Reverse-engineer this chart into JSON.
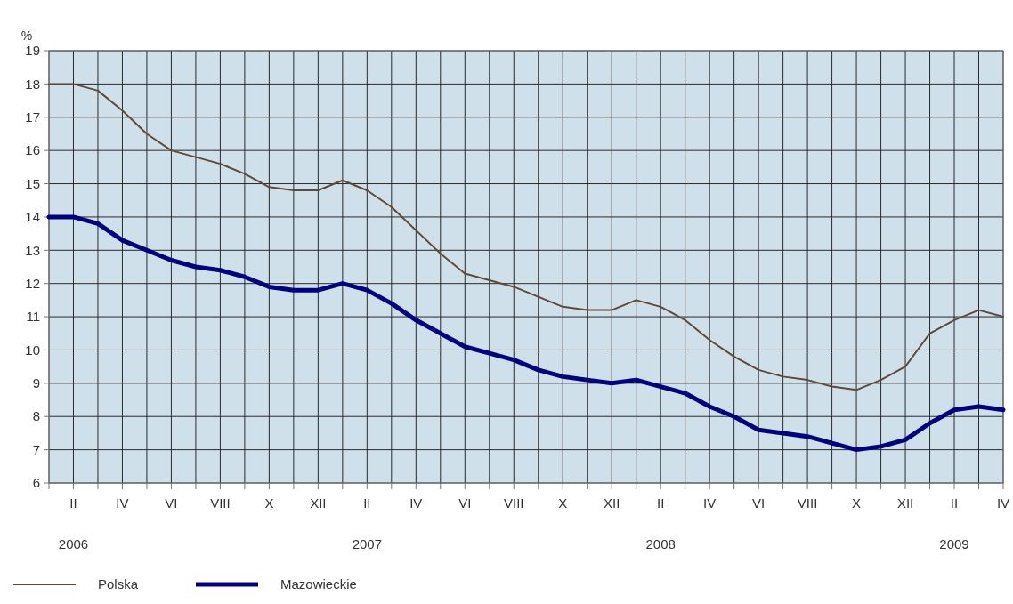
{
  "chart_data": {
    "type": "line",
    "ylabel": "%",
    "categories": [
      null,
      "II",
      null,
      "IV",
      null,
      "VI",
      null,
      "VIII",
      null,
      "X",
      null,
      "XII",
      null,
      "II",
      null,
      "IV",
      null,
      "VI",
      null,
      "VIII",
      null,
      "X",
      null,
      "XII",
      null,
      "II",
      null,
      "IV",
      null,
      "VI",
      null,
      "VIII",
      null,
      "X",
      null,
      "XII",
      null,
      "II",
      null,
      "IV"
    ],
    "series": [
      {
        "name": "Polska",
        "color": "#5e4a3c",
        "values": [
          18.0,
          18.0,
          17.8,
          17.2,
          16.5,
          16.0,
          15.8,
          15.6,
          15.3,
          14.9,
          14.8,
          14.8,
          15.1,
          14.8,
          14.3,
          13.6,
          12.9,
          12.3,
          12.1,
          11.9,
          11.6,
          11.3,
          11.2,
          11.2,
          11.5,
          11.3,
          10.9,
          10.3,
          9.8,
          9.4,
          9.2,
          9.1,
          8.9,
          8.8,
          9.1,
          9.5,
          10.5,
          10.9,
          11.2,
          11.0
        ]
      },
      {
        "name": "Mazowieckie",
        "color": "#000080",
        "values": [
          14.0,
          14.0,
          13.8,
          13.3,
          13.0,
          12.7,
          12.5,
          12.4,
          12.2,
          11.9,
          11.8,
          11.8,
          12.0,
          11.8,
          11.4,
          10.9,
          10.5,
          10.1,
          9.9,
          9.7,
          9.4,
          9.2,
          9.1,
          9.0,
          9.1,
          8.9,
          8.7,
          8.3,
          8.0,
          7.6,
          7.5,
          7.4,
          7.2,
          7.0,
          7.1,
          7.3,
          7.8,
          8.2,
          8.3,
          8.2
        ]
      }
    ],
    "ylim": [
      6,
      19
    ],
    "yticks": [
      6,
      7,
      8,
      9,
      10,
      11,
      12,
      13,
      14,
      15,
      16,
      17,
      18,
      19
    ],
    "grid": true,
    "legend": "bottom left",
    "marker": "none",
    "line_style": "solid",
    "annotations": [
      "2006",
      "2007",
      "2008",
      "2009"
    ]
  }
}
